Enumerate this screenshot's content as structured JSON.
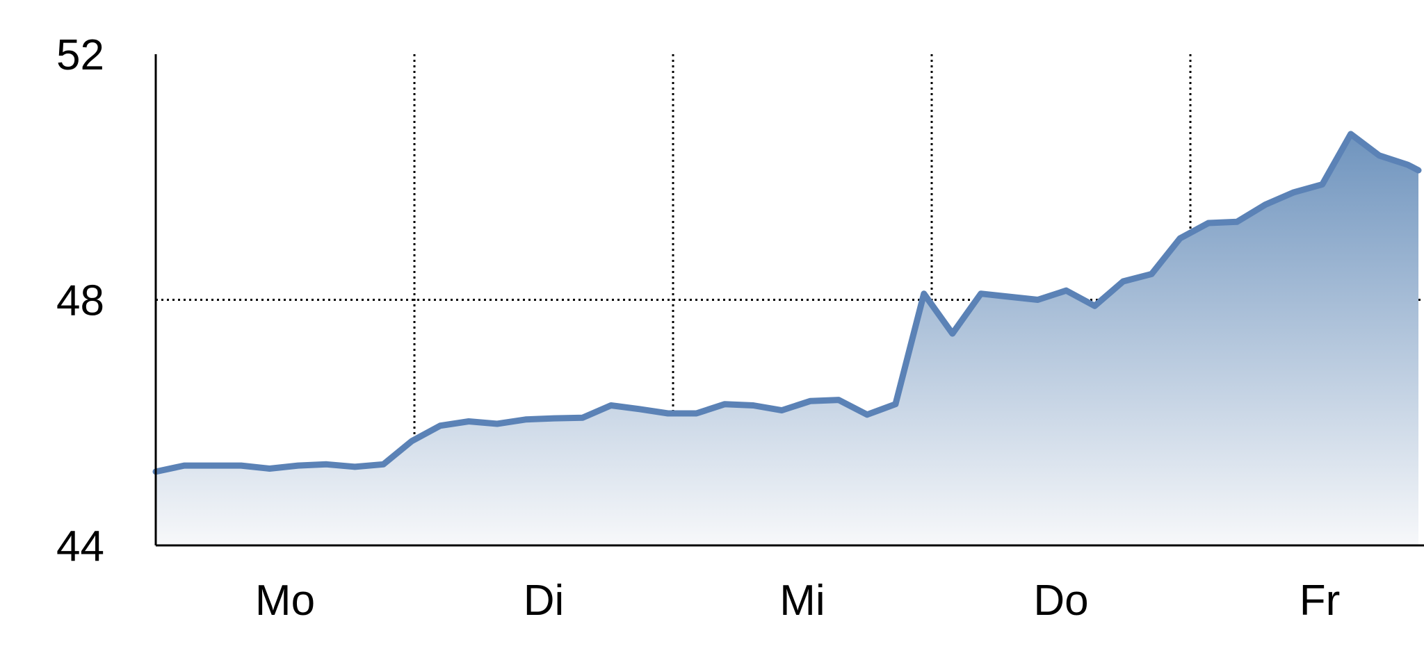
{
  "chart_data": {
    "type": "area",
    "title": "",
    "xlabel": "",
    "ylabel": "",
    "categories": [
      "Mo",
      "Di",
      "Mi",
      "Do",
      "Fr"
    ],
    "ylim": [
      44,
      52
    ],
    "yticks": [
      "44",
      "48",
      "52"
    ],
    "grid": {
      "x_dotted_at_category_boundaries": true,
      "y_dotted_at": 48
    },
    "colors": {
      "line": "#5b82b6",
      "fill_top": "#6f94be",
      "fill_bottom": "#f7f8fa",
      "grid": "#000000"
    },
    "series": [
      {
        "x": [
          0.0,
          0.11,
          0.22,
          0.33,
          0.44,
          0.55,
          0.66,
          0.77,
          0.88,
          0.99,
          1.1,
          1.21,
          1.32,
          1.43,
          1.54,
          1.65,
          1.76,
          1.87,
          1.98,
          2.09,
          2.2,
          2.31,
          2.42,
          2.53,
          2.64,
          2.75,
          2.86,
          2.97,
          3.08,
          3.19,
          3.3,
          3.41,
          3.52,
          3.63,
          3.74,
          3.85,
          3.96,
          4.07,
          4.18,
          4.29,
          4.4,
          4.51,
          4.62,
          4.73,
          4.84,
          4.95
        ],
        "values": [
          45.2,
          45.3,
          45.3,
          45.3,
          45.25,
          45.3,
          45.32,
          45.28,
          45.32,
          45.7,
          45.95,
          46.02,
          45.98,
          46.05,
          46.07,
          46.08,
          46.28,
          46.22,
          46.15,
          46.15,
          46.3,
          46.28,
          46.2,
          46.35,
          46.37,
          46.13,
          46.3,
          48.1,
          47.45,
          48.1,
          48.05,
          48.0,
          48.15,
          47.9,
          48.3,
          48.42,
          49.0,
          49.25,
          49.27,
          49.55,
          49.75,
          49.88,
          50.7,
          50.35,
          50.2,
          null
        ]
      }
    ]
  }
}
